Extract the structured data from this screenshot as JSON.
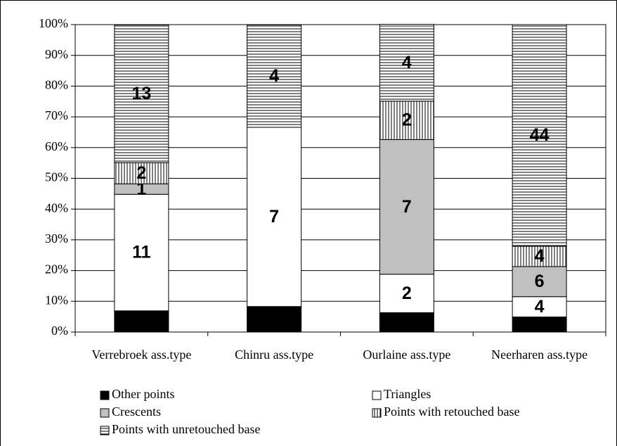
{
  "chart_data": {
    "type": "stacked_bar_percent",
    "categories": [
      "Verrebroek ass.type",
      "Chinru ass.type",
      "Ourlaine ass.type",
      "Neerharen ass.type"
    ],
    "series": [
      {
        "name": "Other points",
        "color": "#000000",
        "values": [
          6.9,
          8.3,
          6.3,
          4.9
        ],
        "counts": [
          null,
          null,
          null,
          null
        ]
      },
      {
        "name": "Triangles",
        "color": "#ffffff",
        "values": [
          37.9,
          58.3,
          12.5,
          6.6
        ],
        "counts": [
          11,
          7,
          2,
          4
        ]
      },
      {
        "name": "Crescents",
        "color": "#c0c0c0",
        "values": [
          3.4,
          0,
          43.8,
          9.8
        ],
        "counts": [
          1,
          null,
          7,
          6
        ]
      },
      {
        "name": "Points with retouched base",
        "color": "#ffffff",
        "pattern": "vertical",
        "values": [
          6.9,
          0,
          12.5,
          6.6
        ],
        "counts": [
          2,
          null,
          2,
          4
        ]
      },
      {
        "name": "Points with unretouched base",
        "color": "#ffffff",
        "pattern": "horizontal",
        "values": [
          44.8,
          33.3,
          25,
          72.1
        ],
        "counts": [
          13,
          4,
          4,
          44
        ]
      }
    ],
    "ylim": [
      0,
      100
    ],
    "yticks": [
      {
        "value": 0,
        "label": "0%"
      },
      {
        "value": 10,
        "label": "10%"
      },
      {
        "value": 20,
        "label": "20%"
      },
      {
        "value": 30,
        "label": "30%"
      },
      {
        "value": 40,
        "label": "40%"
      },
      {
        "value": 50,
        "label": "50%"
      },
      {
        "value": 60,
        "label": "60%"
      },
      {
        "value": 70,
        "label": "70%"
      },
      {
        "value": 80,
        "label": "80%"
      },
      {
        "value": 90,
        "label": "90%"
      },
      {
        "value": 100,
        "label": "100%"
      }
    ],
    "grid": true,
    "legend": "bottom"
  }
}
